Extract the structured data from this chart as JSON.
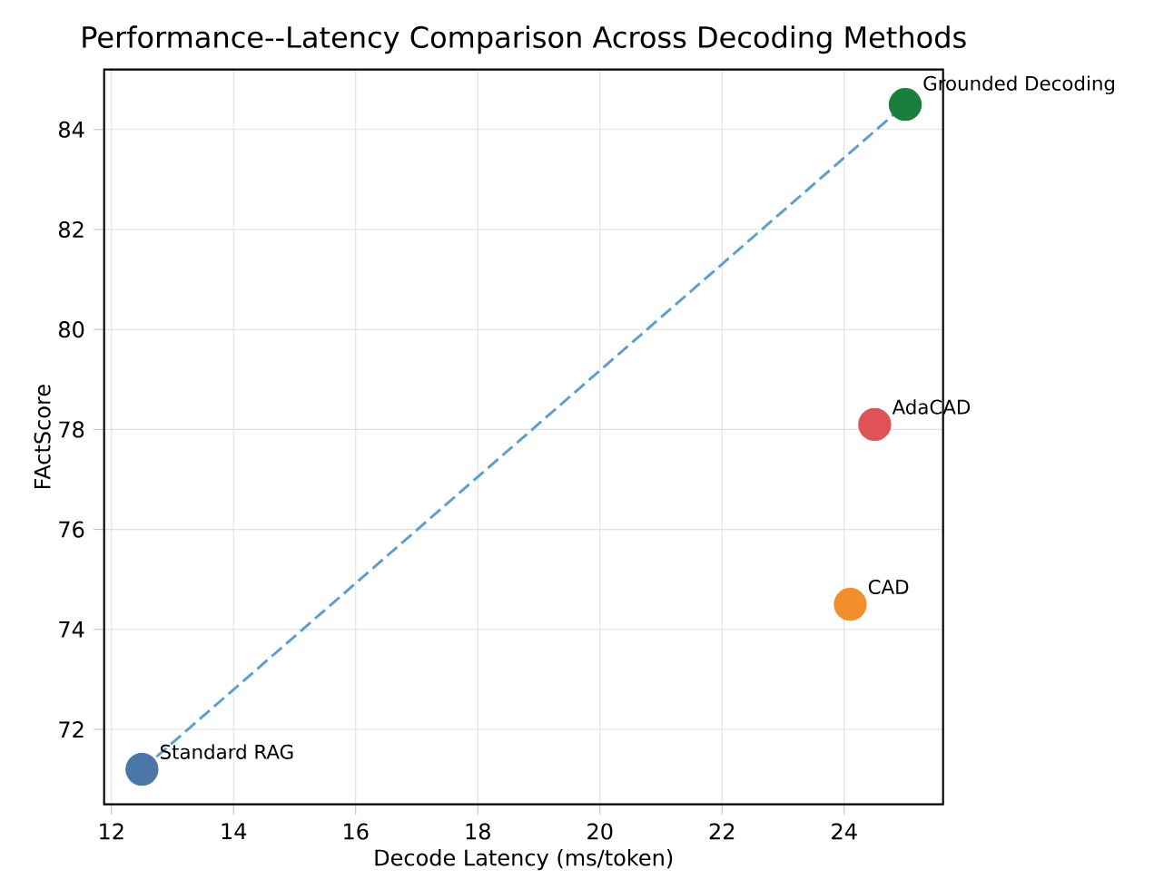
{
  "chart_data": {
    "type": "scatter",
    "title": "Performance--Latency Comparison Across Decoding Methods",
    "xlabel": "Decode Latency (ms/token)",
    "ylabel": "FActScore",
    "xlim": [
      11.88,
      25.62
    ],
    "ylim": [
      70.5,
      85.2
    ],
    "xticks": [
      12,
      14,
      16,
      18,
      20,
      22,
      24
    ],
    "yticks": [
      72,
      74,
      76,
      78,
      80,
      82,
      84
    ],
    "grid": true,
    "series": [
      {
        "type": "line",
        "x": [
          12.5,
          25.0
        ],
        "values": [
          71.2,
          84.5
        ],
        "color": "#5b9fd0",
        "line_style": "dashed"
      },
      {
        "marker": "circle",
        "x": [
          12.5,
          24.1,
          24.5,
          25.0
        ],
        "values": [
          71.2,
          74.5,
          78.1,
          84.5
        ],
        "colors": [
          "#4a76a8",
          "#f28e2b",
          "#e05257",
          "#1a7f3a"
        ]
      }
    ],
    "annotations": [
      {
        "text": "Standard RAG",
        "x": 12.5,
        "y": 71.2
      },
      {
        "text": "CAD",
        "x": 24.1,
        "y": 74.5
      },
      {
        "text": "AdaCAD",
        "x": 24.5,
        "y": 78.1
      },
      {
        "text": "Grounded Decoding",
        "x": 25.0,
        "y": 84.5
      }
    ]
  }
}
